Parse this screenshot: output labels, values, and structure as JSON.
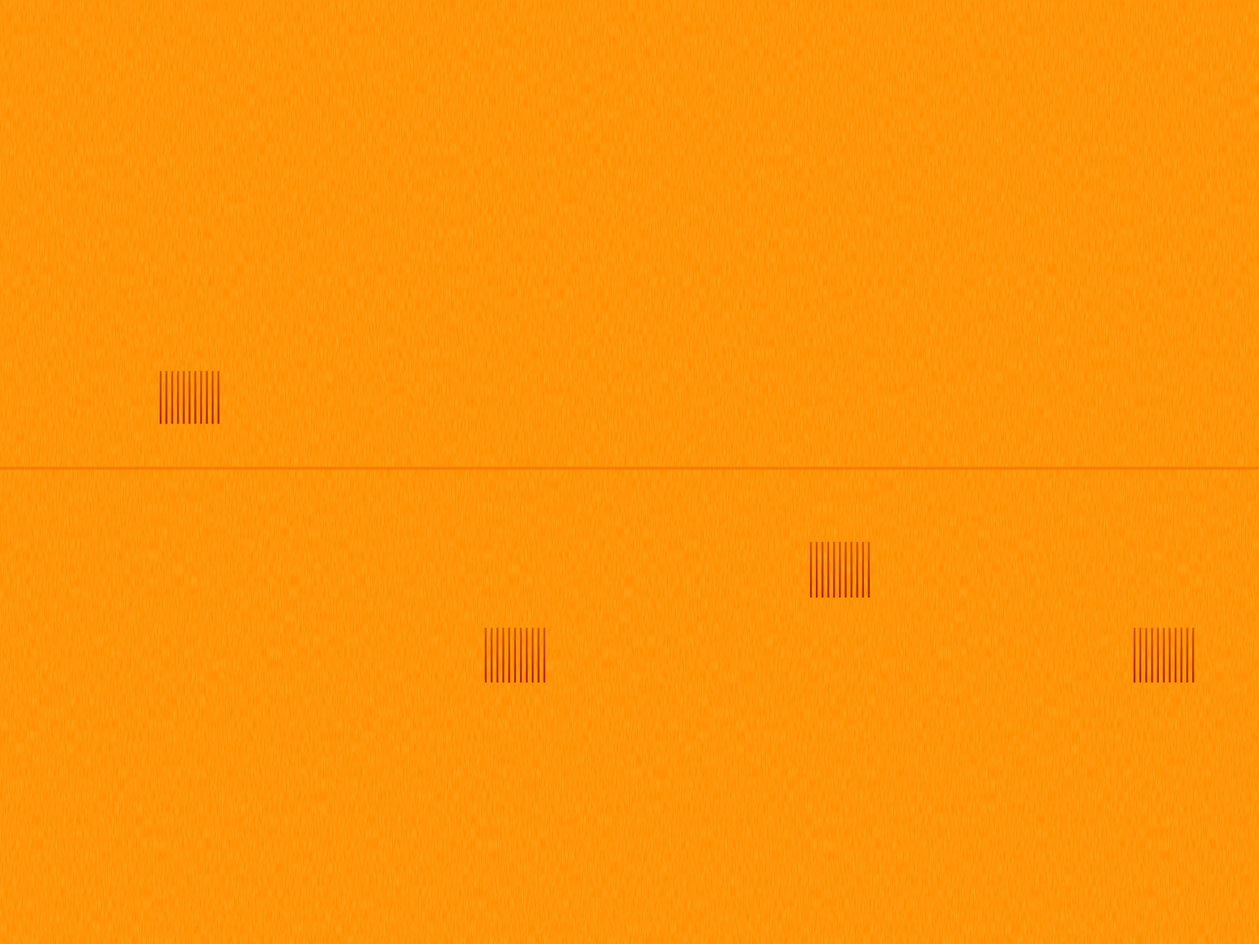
{
  "chart_data": {
    "type": "spectrogram",
    "xlim": [
      0,
      100
    ],
    "ylim": [
      0,
      100
    ],
    "tick_labels": false,
    "grid": false,
    "color": "#ff8c00",
    "tone": {
      "value": 50.4,
      "color": "#ef6a00"
    },
    "bursts": [
      {
        "start": 12.76,
        "end": 17.35,
        "low": 55.1,
        "high": 60.7,
        "count": 11,
        "color": "#a81800"
      },
      {
        "start": 38.58,
        "end": 43.24,
        "low": 27.7,
        "high": 33.5,
        "count": 11,
        "color": "#a81800"
      },
      {
        "start": 64.41,
        "end": 69.01,
        "low": 36.7,
        "high": 42.6,
        "count": 11,
        "color": "#a81800"
      },
      {
        "start": 90.11,
        "end": 94.77,
        "low": 27.7,
        "high": 33.5,
        "count": 11,
        "color": "#a81800"
      }
    ]
  }
}
